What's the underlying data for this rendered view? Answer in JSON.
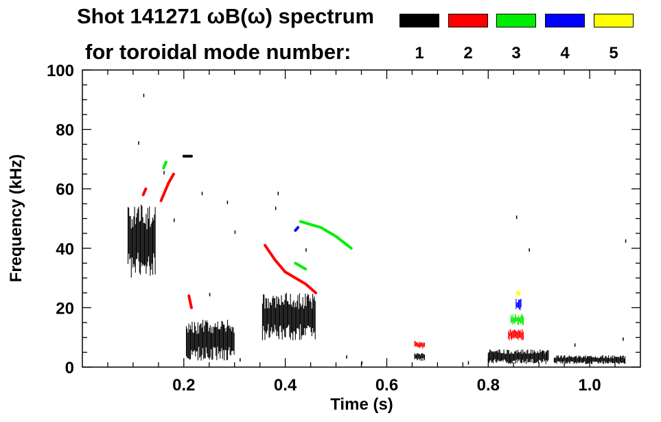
{
  "chart_data": {
    "type": "scatter",
    "title_line1": "Shot 141271 ωB(ω) spectrum",
    "title_line2": "for toroidal mode number:",
    "xlabel": "Time (s)",
    "ylabel": "Frequency (kHz)",
    "xlim": [
      0.0,
      1.1
    ],
    "ylim": [
      0,
      100
    ],
    "x_ticks": [
      0.2,
      0.4,
      0.6,
      0.8,
      1.0
    ],
    "x_tick_labels": [
      "0.2",
      "0.4",
      "0.6",
      "0.8",
      "1.0"
    ],
    "y_ticks": [
      0,
      20,
      40,
      60,
      80,
      100
    ],
    "y_tick_labels": [
      "0",
      "20",
      "40",
      "60",
      "80",
      "100"
    ],
    "legend": [
      {
        "label": "1",
        "color": "#000000"
      },
      {
        "label": "2",
        "color": "#ff0000"
      },
      {
        "label": "3",
        "color": "#00ee00"
      },
      {
        "label": "4",
        "color": "#0000ff"
      },
      {
        "label": "5",
        "color": "#ffff00"
      }
    ],
    "series": [
      {
        "name": "n=1",
        "color": "#000000",
        "blobs": [
          {
            "t0": 0.09,
            "t1": 0.145,
            "f0": 30,
            "f1": 55
          },
          {
            "t0": 0.205,
            "t1": 0.3,
            "f0": 2,
            "f1": 16
          },
          {
            "t0": 0.355,
            "t1": 0.46,
            "f0": 9,
            "f1": 25
          },
          {
            "t0": 0.655,
            "t1": 0.675,
            "f0": 2,
            "f1": 5
          },
          {
            "t0": 0.8,
            "t1": 0.92,
            "f0": 1,
            "f1": 6
          },
          {
            "t0": 0.93,
            "t1": 1.07,
            "f0": 1,
            "f1": 4
          }
        ],
        "traces": [
          {
            "t": [
              0.2,
              0.215
            ],
            "f": [
              71,
              71
            ]
          }
        ]
      },
      {
        "name": "n=2",
        "color": "#ff0000",
        "blobs": [
          {
            "t0": 0.655,
            "t1": 0.675,
            "f0": 6,
            "f1": 9
          },
          {
            "t0": 0.84,
            "t1": 0.87,
            "f0": 9,
            "f1": 13
          }
        ],
        "traces": [
          {
            "t": [
              0.36,
              0.38,
              0.4,
              0.42,
              0.44,
              0.46
            ],
            "f": [
              41,
              36,
              32,
              30,
              28,
              25
            ]
          },
          {
            "t": [
              0.12,
              0.125
            ],
            "f": [
              58,
              60
            ]
          },
          {
            "t": [
              0.155,
              0.17,
              0.18
            ],
            "f": [
              56,
              62,
              65
            ]
          },
          {
            "t": [
              0.21,
              0.215
            ],
            "f": [
              24,
              20
            ]
          }
        ]
      },
      {
        "name": "n=3",
        "color": "#00ee00",
        "blobs": [
          {
            "t0": 0.845,
            "t1": 0.87,
            "f0": 14,
            "f1": 18
          }
        ],
        "traces": [
          {
            "t": [
              0.43,
              0.47,
              0.5,
              0.53
            ],
            "f": [
              49,
              47,
              44,
              40
            ]
          },
          {
            "t": [
              0.42,
              0.44
            ],
            "f": [
              35,
              33
            ]
          },
          {
            "t": [
              0.16,
              0.165
            ],
            "f": [
              67,
              69
            ]
          }
        ]
      },
      {
        "name": "n=4",
        "color": "#0000ff",
        "blobs": [
          {
            "t0": 0.855,
            "t1": 0.865,
            "f0": 19,
            "f1": 23
          }
        ],
        "traces": [
          {
            "t": [
              0.42,
              0.425
            ],
            "f": [
              46,
              47
            ]
          }
        ]
      },
      {
        "name": "n=5",
        "color": "#ffff00",
        "blobs": [
          {
            "t0": 0.856,
            "t1": 0.864,
            "f0": 24,
            "f1": 26
          }
        ],
        "traces": []
      }
    ]
  }
}
